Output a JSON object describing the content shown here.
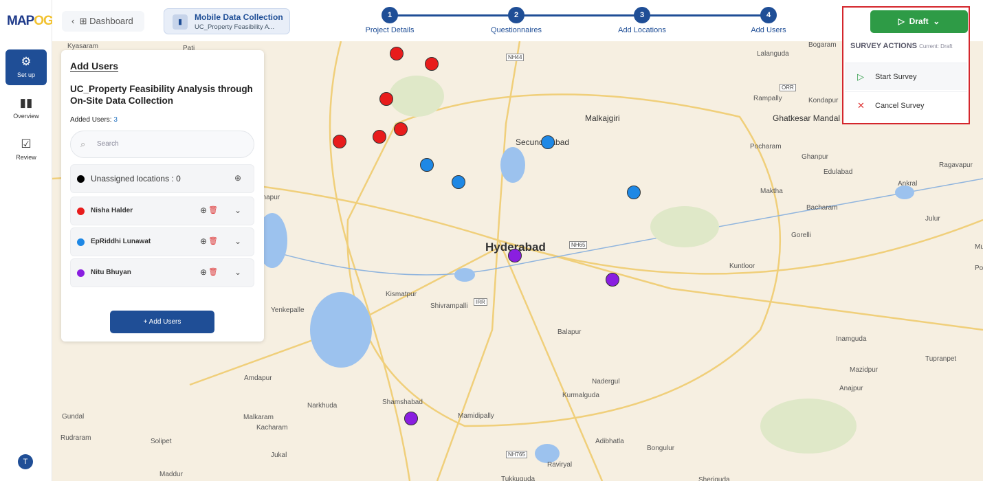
{
  "app": {
    "logo_a": "MAP",
    "logo_b": "OG"
  },
  "sidebar": {
    "items": [
      {
        "label": "Set up",
        "icon": "gear-icon"
      },
      {
        "label": "Overview",
        "icon": "bar-chart-icon"
      },
      {
        "label": "Review",
        "icon": "checkbox-icon"
      }
    ],
    "avatar": "T"
  },
  "topbar": {
    "dashboard": "Dashboard",
    "project_title": "Mobile Data Collection",
    "project_sub": "UC_Property Feasibility A...",
    "steps": [
      {
        "num": "1",
        "label": "Project Details"
      },
      {
        "num": "2",
        "label": "Questionnaires"
      },
      {
        "num": "3",
        "label": "Add Locations"
      },
      {
        "num": "4",
        "label": "Add Users"
      }
    ]
  },
  "panel": {
    "heading": "Add Users",
    "title": "UC_Property Feasibility Analysis through On-Site Data Collection",
    "added_label": "Added Users:",
    "added_count": "3",
    "search_placeholder": "Search",
    "unassigned": "Unassigned locations : 0",
    "users": [
      {
        "name": "Nisha Halder",
        "color": "#e81c1c"
      },
      {
        "name": "EpRiddhi Lunawat",
        "color": "#1e88e5"
      },
      {
        "name": "Nitu Bhuyan",
        "color": "#8a1ee0"
      }
    ],
    "add_button": "+ Add Users"
  },
  "survey": {
    "status": "Draft",
    "menu_title": "SURVEY ACTIONS",
    "current": "Current: Draft",
    "actions": [
      "Start Survey",
      "Cancel Survey"
    ]
  },
  "map": {
    "labels": [
      "Kyasaram",
      "Pati",
      "Lalanguda",
      "Bogaram",
      "NH44",
      "ORR",
      "Rampally",
      "Kondapur",
      "Malkajgiri",
      "Ghatkesar Mandal",
      "Secunderabad",
      "Pocharam",
      "Ghanpur",
      "Edulabad",
      "Ragavapur",
      "Maktha",
      "Ankral",
      "Bacharam",
      "Julur",
      "Gorelli",
      "Hyderabad",
      "NH65",
      "Kuntloor",
      "Kismatpur",
      "Shivrampalli",
      "IRR",
      "Yenkepalle",
      "Balapur",
      "Inamguda",
      "Tupranpet",
      "Mazidpur",
      "Anajpur",
      "Amdapur",
      "Nadergul",
      "Kurmalguda",
      "Narkhuda",
      "Shamshabad",
      "Mamidipally",
      "Malkaram",
      "Kacharam",
      "Gundal",
      "Rudraram",
      "Solipet",
      "Jukal",
      "NH765",
      "Adibhatla",
      "Bongulur",
      "Raviryal",
      "Maddur",
      "Tukkuguda",
      "Sheriguda",
      "anapur",
      "Mukth",
      "Po"
    ]
  }
}
